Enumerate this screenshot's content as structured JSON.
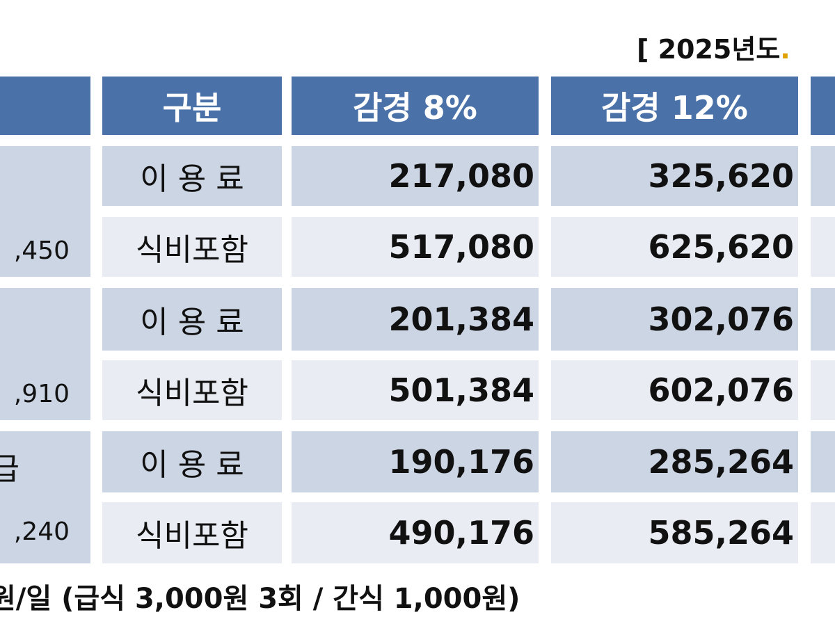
{
  "year_label": {
    "text": "[ 2025년도",
    "cut": "."
  },
  "header": {
    "col_category": "구분",
    "col_8": "감경 8%",
    "col_12": "감경 12%"
  },
  "groups": [
    {
      "grade_name": "",
      "grade_amount": "",
      "grade_amount_partial": ",450",
      "rows": [
        {
          "label": "이 용 료",
          "v8": "217,080",
          "v12": "325,620"
        },
        {
          "label": "식비포함",
          "v8": "517,080",
          "v12": "625,620"
        }
      ]
    },
    {
      "grade_name": "",
      "grade_amount_partial": ",910",
      "rows": [
        {
          "label": "이 용 료",
          "v8": "201,384",
          "v12": "302,076"
        },
        {
          "label": "식비포함",
          "v8": "501,384",
          "v12": "602,076"
        }
      ]
    },
    {
      "grade_name": "급",
      "grade_amount_partial": ",240",
      "rows": [
        {
          "label": "이 용 료",
          "v8": "190,176",
          "v12": "285,264"
        },
        {
          "label": "식비포함",
          "v8": "490,176",
          "v12": "585,264"
        }
      ]
    }
  ],
  "footnote": "원/일 (급식 3,000원 3회 / 간식 1,000원)",
  "colors": {
    "header_bg": "#4a71a8",
    "row_dark": "#ccd5e3",
    "row_light": "#e9edf3"
  }
}
